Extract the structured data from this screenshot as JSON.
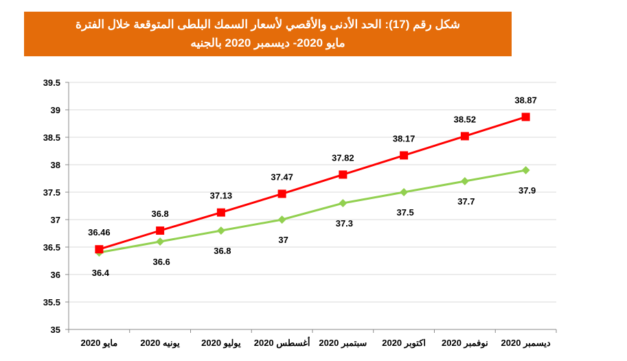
{
  "chart_data": {
    "type": "line",
    "title_line1": "شكل رقم (17): الحد الأدنى والأقصي لأسعار  السمك البلطى المتوقعة خلال الفترة",
    "title_line2": "مايو 2020- ديسمبر 2020 بالجنيه",
    "categories": [
      "مايو 2020",
      "يونيه 2020",
      "يوليو 2020",
      "أغسطس 2020",
      "سبتمبر 2020",
      "اكتوبر 2020",
      "نوفمبر 2020",
      "ديسمبر 2020"
    ],
    "series": [
      {
        "values": [
          36.46,
          36.8,
          37.13,
          37.47,
          37.82,
          38.17,
          38.52,
          38.87
        ],
        "color": "#ff0000",
        "marker": "square"
      },
      {
        "values": [
          36.4,
          36.6,
          36.8,
          37,
          37.3,
          37.5,
          37.7,
          37.9
        ],
        "color": "#92d050",
        "marker": "diamond"
      }
    ],
    "ylim": [
      35,
      39.5
    ],
    "yticks": [
      "35",
      "35.5",
      "36",
      "36.5",
      "37",
      "37.5",
      "38",
      "38.5",
      "39",
      "39.5"
    ],
    "grid": true,
    "title_color": "#e46c0a"
  }
}
